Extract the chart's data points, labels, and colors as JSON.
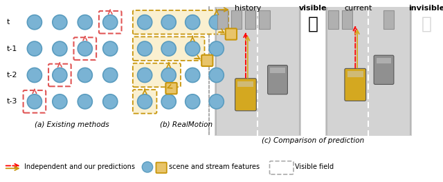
{
  "bg_color": "#ffffff",
  "circle_color": "#7ab3d4",
  "circle_edge_color": "#5a9cbf",
  "red_box_color": "#e05555",
  "gold_color": "#c8960c",
  "gold_face": "#e8c46a",
  "gold_group_face": "#faf0d0",
  "row_labels": [
    "t",
    "t-1",
    "t-2",
    "t-3"
  ],
  "subtitle_a": "(a) Existing methods",
  "subtitle_b": "(b) RealMotion",
  "subtitle_c": "(c) Comparison of prediction",
  "history_label": "history",
  "visible_label": "visible",
  "current_label": "current",
  "invisible_label": "invisible",
  "legend1": "Independent and our predictions",
  "legend2": "scene and stream features",
  "legend3": "Visible field",
  "road_bg": "#d3d3d3",
  "road_line": "#aaaaaa",
  "sep_color": "#999999",
  "parking_color": "#b0b0b0",
  "car_gold": "#d4a820",
  "car_gray": "#909090"
}
